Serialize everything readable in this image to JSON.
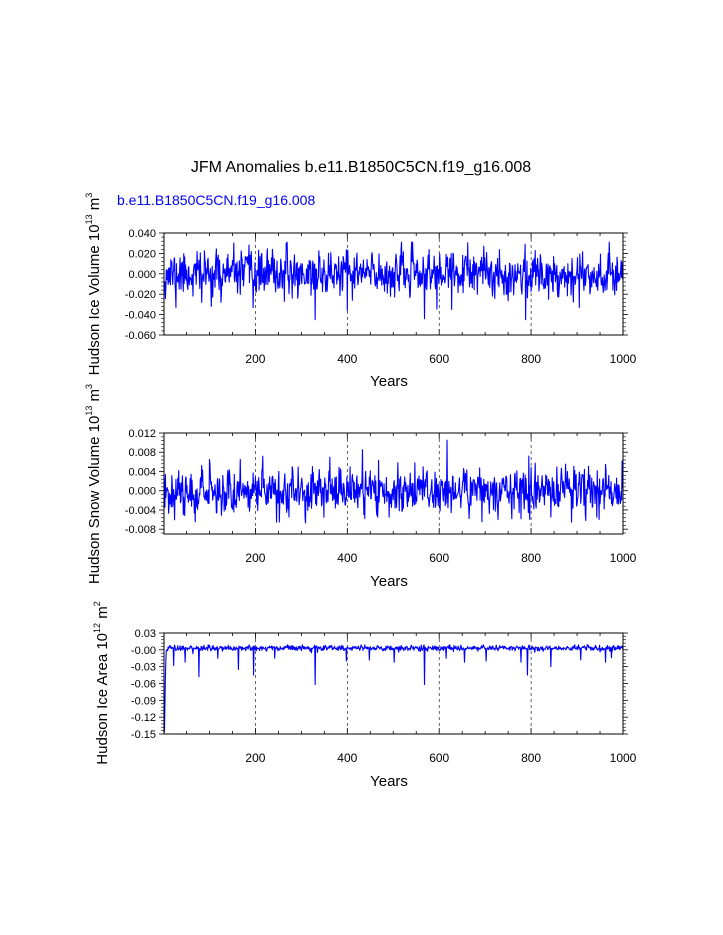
{
  "figure": {
    "title": "JFM Anomalies b.e11.B1850C5CN.f19_g16.008",
    "subtitle": "b.e11.B1850C5CN.f19_g16.008",
    "line_color": "#0000ff"
  },
  "chart_data": [
    {
      "type": "line",
      "series_name": "b.e11.B1850C5CN.f19_g16.008",
      "xlabel": "Years",
      "ylabel_parts": [
        "Hudson Ice Volume 10",
        "13",
        " m",
        "3"
      ],
      "xlim": [
        1,
        1000
      ],
      "ylim": [
        -0.06,
        0.04
      ],
      "xticks": [
        200,
        400,
        600,
        800,
        1000
      ],
      "yticks": [
        -0.06,
        -0.04,
        -0.02,
        0.0,
        0.02,
        0.04
      ],
      "ytick_labels": [
        "-0.060",
        "-0.040",
        "-0.020",
        "0.000",
        "0.020",
        "0.040"
      ],
      "vgrid": [
        200,
        400,
        600,
        800
      ],
      "values": {
        "n": 1000,
        "seed": 11,
        "mean": 0.0,
        "std": 0.0105,
        "ar": 0.2,
        "clip": [
          -0.045,
          0.031
        ],
        "spikes": [
          [
            27,
            -0.033
          ],
          [
            83,
            -0.028
          ],
          [
            125,
            -0.028
          ],
          [
            195,
            -0.033
          ],
          [
            330,
            -0.045
          ],
          [
            400,
            -0.036
          ],
          [
            568,
            -0.044
          ],
          [
            627,
            -0.035
          ],
          [
            788,
            -0.045
          ],
          [
            905,
            -0.033
          ]
        ]
      }
    },
    {
      "type": "line",
      "series_name": "b.e11.B1850C5CN.f19_g16.008",
      "xlabel": "Years",
      "ylabel_parts": [
        "Hudson Snow Volume 10",
        "13",
        " m",
        "3"
      ],
      "xlim": [
        1,
        1000
      ],
      "ylim": [
        -0.009,
        0.012
      ],
      "xticks": [
        200,
        400,
        600,
        800,
        1000
      ],
      "yticks": [
        -0.008,
        -0.004,
        0.0,
        0.004,
        0.008,
        0.012
      ],
      "ytick_labels": [
        "-0.008",
        "-0.004",
        "0.000",
        "0.004",
        "0.008",
        "0.012"
      ],
      "vgrid": [
        200,
        400,
        600,
        800
      ],
      "values": {
        "n": 1000,
        "seed": 37,
        "mean": 0.0,
        "std": 0.0023,
        "ar": 0.2,
        "clip": [
          -0.0067,
          0.0105
        ],
        "spikes": [
          [
            43,
            -0.005
          ],
          [
            167,
            0.0065
          ],
          [
            252,
            -0.0065
          ],
          [
            433,
            0.0085
          ],
          [
            617,
            0.0105
          ],
          [
            728,
            -0.006
          ],
          [
            795,
            0.0072
          ],
          [
            943,
            -0.0055
          ],
          [
            998,
            0.0062
          ]
        ]
      }
    },
    {
      "type": "line",
      "series_name": "b.e11.B1850C5CN.f19_g16.008",
      "xlabel": "Years",
      "ylabel_parts": [
        "Hudson Ice Area 10",
        "12",
        " m",
        "2"
      ],
      "xlim": [
        1,
        1000
      ],
      "ylim": [
        -0.15,
        0.03
      ],
      "xticks": [
        200,
        400,
        600,
        800,
        1000
      ],
      "yticks": [
        -0.15,
        -0.12,
        -0.09,
        -0.06,
        -0.03,
        0.0,
        0.03
      ],
      "ytick_labels": [
        "-0.15",
        "-0.12",
        "-0.09",
        "-0.06",
        "-0.03",
        "-0.00",
        "0.03"
      ],
      "vgrid": [
        200,
        400,
        600,
        800
      ],
      "values": {
        "n": 1000,
        "seed": 73,
        "mean": 0.003,
        "std": 0.0025,
        "ar": 0.1,
        "clip": [
          -0.012,
          0.009
        ],
        "spikes": [
          [
            1,
            -0.148
          ],
          [
            2,
            -0.145
          ],
          [
            3,
            -0.1
          ],
          [
            4,
            -0.05
          ],
          [
            5,
            -0.02
          ],
          [
            22,
            -0.028
          ],
          [
            47,
            -0.022
          ],
          [
            77,
            -0.048
          ],
          [
            118,
            -0.015
          ],
          [
            163,
            -0.035
          ],
          [
            196,
            -0.045
          ],
          [
            242,
            -0.015
          ],
          [
            330,
            -0.062
          ],
          [
            398,
            -0.02
          ],
          [
            448,
            -0.018
          ],
          [
            502,
            -0.022
          ],
          [
            568,
            -0.062
          ],
          [
            615,
            -0.015
          ],
          [
            655,
            -0.022
          ],
          [
            702,
            -0.02
          ],
          [
            778,
            -0.022
          ],
          [
            792,
            -0.045
          ],
          [
            843,
            -0.03
          ],
          [
            908,
            -0.018
          ],
          [
            962,
            -0.022
          ],
          [
            975,
            -0.014
          ]
        ]
      }
    }
  ]
}
